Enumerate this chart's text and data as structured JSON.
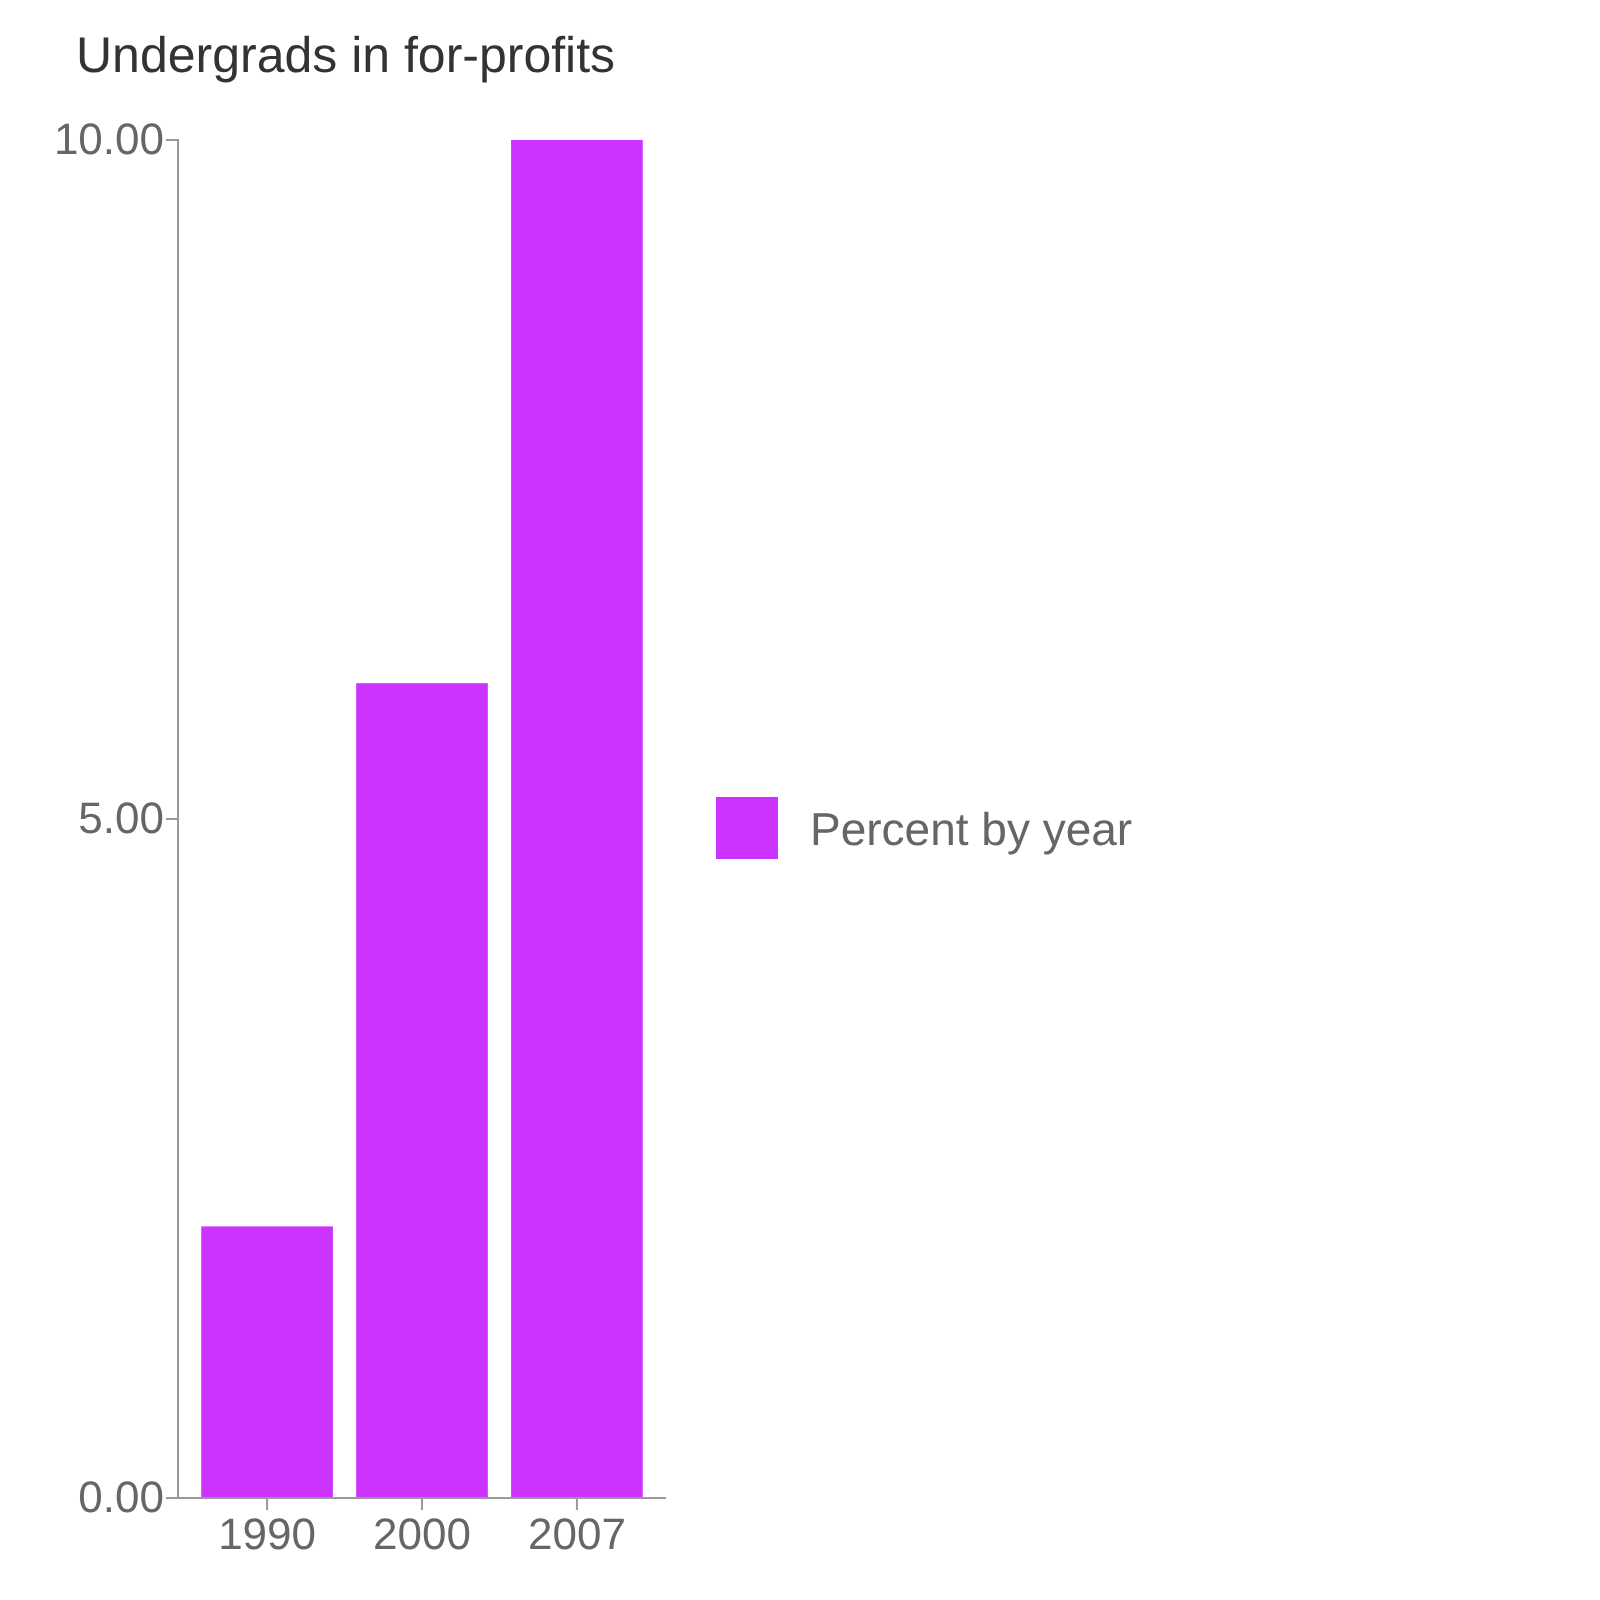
{
  "chart_data": {
    "type": "bar",
    "title": "Undergrads in for-profits",
    "categories": [
      "1990",
      "2000",
      "2007"
    ],
    "series": [
      {
        "name": "Percent by year",
        "color": "#cc33ff",
        "values": [
          2,
          6,
          10
        ]
      }
    ],
    "ylim": [
      0,
      10
    ],
    "yticks": [
      {
        "value": 0,
        "label": "0.00"
      },
      {
        "value": 5,
        "label": "5.00"
      },
      {
        "value": 10,
        "label": "10.00"
      }
    ],
    "grid": false,
    "legend": "right"
  }
}
